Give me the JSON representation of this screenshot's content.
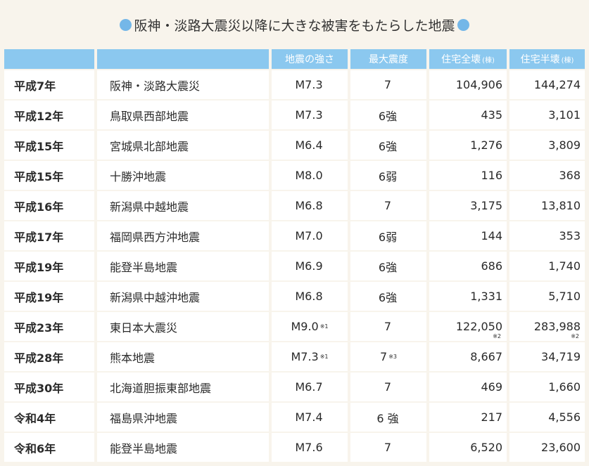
{
  "title": "阪神・淡路大震災以降に大きな被害をもたらした地震",
  "header": {
    "col1": "",
    "col2": "",
    "col3": "地震の強さ",
    "col4": "最大震度",
    "col5": "住宅全壊",
    "col5_unit": "(棟)",
    "col6": "住宅半壊",
    "col6_unit": "(棟)"
  },
  "rows": [
    {
      "era": "平成7年",
      "name": "阪神・淡路大震災",
      "mag": "M7.3",
      "mag_note": "",
      "intensity": "7",
      "int_note": "",
      "full": "104,906",
      "full_note": "",
      "half": "144,274",
      "half_note": ""
    },
    {
      "era": "平成12年",
      "name": "鳥取県西部地震",
      "mag": "M7.3",
      "mag_note": "",
      "intensity": "6強",
      "int_note": "",
      "full": "435",
      "full_note": "",
      "half": "3,101",
      "half_note": ""
    },
    {
      "era": "平成15年",
      "name": "宮城県北部地震",
      "mag": "M6.4",
      "mag_note": "",
      "intensity": "6強",
      "int_note": "",
      "full": "1,276",
      "full_note": "",
      "half": "3,809",
      "half_note": ""
    },
    {
      "era": "平成15年",
      "name": "十勝沖地震",
      "mag": "M8.0",
      "mag_note": "",
      "intensity": "6弱",
      "int_note": "",
      "full": "116",
      "full_note": "",
      "half": "368",
      "half_note": ""
    },
    {
      "era": "平成16年",
      "name": "新潟県中越地震",
      "mag": "M6.8",
      "mag_note": "",
      "intensity": "7",
      "int_note": "",
      "full": "3,175",
      "full_note": "",
      "half": "13,810",
      "half_note": ""
    },
    {
      "era": "平成17年",
      "name": "福岡県西方沖地震",
      "mag": "M7.0",
      "mag_note": "",
      "intensity": "6弱",
      "int_note": "",
      "full": "144",
      "full_note": "",
      "half": "353",
      "half_note": ""
    },
    {
      "era": "平成19年",
      "name": "能登半島地震",
      "mag": "M6.9",
      "mag_note": "",
      "intensity": "6強",
      "int_note": "",
      "full": "686",
      "full_note": "",
      "half": "1,740",
      "half_note": ""
    },
    {
      "era": "平成19年",
      "name": "新潟県中越沖地震",
      "mag": "M6.8",
      "mag_note": "",
      "intensity": "6強",
      "int_note": "",
      "full": "1,331",
      "full_note": "",
      "half": "5,710",
      "half_note": ""
    },
    {
      "era": "平成23年",
      "name": "東日本大震災",
      "mag": "M9.0",
      "mag_note": "※1",
      "intensity": "7",
      "int_note": "",
      "full": "122,050",
      "full_note": "※2",
      "half": "283,988",
      "half_note": "※2"
    },
    {
      "era": "平成28年",
      "name": "熊本地震",
      "mag": "M7.3",
      "mag_note": "※1",
      "intensity": "7",
      "int_note": "※3",
      "full": "8,667",
      "full_note": "",
      "half": "34,719",
      "half_note": ""
    },
    {
      "era": "平成30年",
      "name": "北海道胆振東部地震",
      "mag": "M6.7",
      "mag_note": "",
      "intensity": "7",
      "int_note": "",
      "full": "469",
      "full_note": "",
      "half": "1,660",
      "half_note": ""
    },
    {
      "era": "令和4年",
      "name": "福島県沖地震",
      "mag": "M7.4",
      "mag_note": "",
      "intensity": "6 強",
      "int_note": "",
      "full": "217",
      "full_note": "",
      "half": "4,556",
      "half_note": ""
    },
    {
      "era": "令和6年",
      "name": "能登半島地震",
      "mag": "M7.6",
      "mag_note": "",
      "intensity": "7",
      "int_note": "",
      "full": "6,520",
      "full_note": "",
      "half": "23,600",
      "half_note": ""
    }
  ]
}
